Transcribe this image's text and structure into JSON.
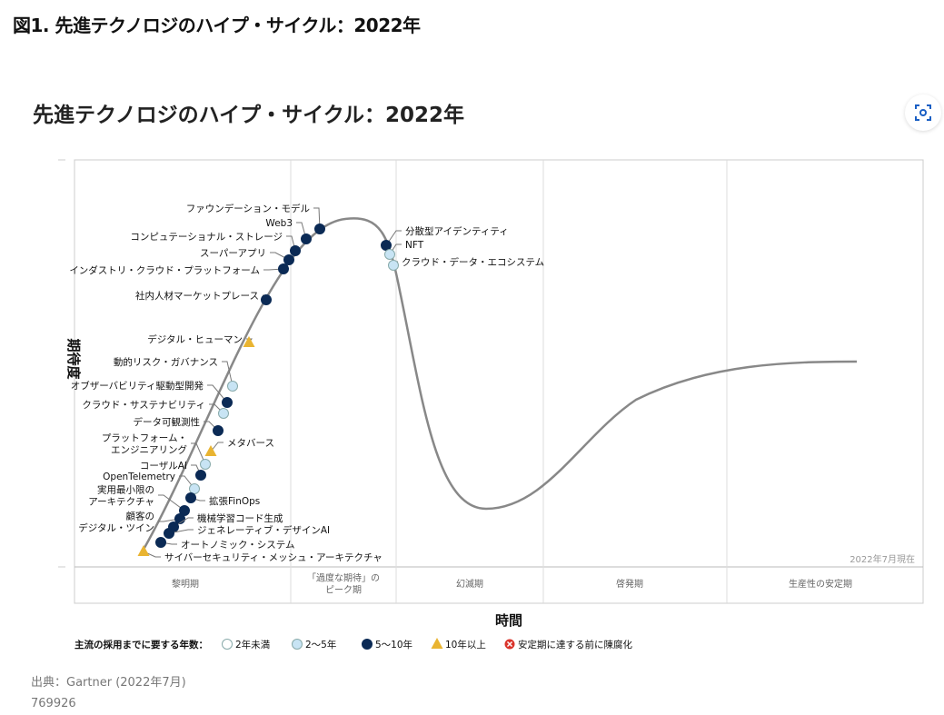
{
  "page_title": "図1. 先進テクノロジのハイプ・サイクル：2022年",
  "source": "出典：Gartner (2022年7月)",
  "figure_id": "769926",
  "lens_button_icon": "visual-search-icon",
  "chart_data": {
    "type": "hype-cycle",
    "title": "先進テクノロジのハイプ・サイクル：2022年",
    "ylabel": "期待度",
    "xlabel": "時間",
    "as_of": "2022年7月現在",
    "phases": [
      "黎明期",
      "「過度な期待」の\nピーク期",
      "幻滅期",
      "啓発期",
      "生産性の安定期"
    ],
    "legend_title": "主流の採用までに要する年数：",
    "legend": [
      {
        "key": "lt2",
        "label": "2年未満",
        "shape": "circle",
        "color": "#ffffff"
      },
      {
        "key": "2to5",
        "label": "2〜5年",
        "shape": "circle",
        "color": "#c8e4f4"
      },
      {
        "key": "5to10",
        "label": "5〜10年",
        "shape": "circle",
        "color": "#0b2a55"
      },
      {
        "key": "gt10",
        "label": "10年以上",
        "shape": "triangle",
        "color": "#e9b431"
      },
      {
        "key": "obsolete",
        "label": "安定期に達する前に陳腐化",
        "shape": "x-circle",
        "color": "#d9342b"
      }
    ],
    "items": [
      {
        "name": "ファウンデーション・モデル",
        "category": "5to10",
        "phase": "peak"
      },
      {
        "name": "Web3",
        "category": "5to10",
        "phase": "peak"
      },
      {
        "name": "コンピュテーショナル・ストレージ",
        "category": "5to10",
        "phase": "innovation"
      },
      {
        "name": "スーパーアプリ",
        "category": "5to10",
        "phase": "innovation"
      },
      {
        "name": "インダストリ・クラウド・プラットフォーム",
        "category": "5to10",
        "phase": "innovation"
      },
      {
        "name": "社内人材マーケットプレース",
        "category": "5to10",
        "phase": "innovation"
      },
      {
        "name": "デジタル・ヒューマン",
        "category": "gt10",
        "phase": "innovation"
      },
      {
        "name": "動的リスク・ガバナンス",
        "category": "2to5",
        "phase": "innovation"
      },
      {
        "name": "オブザーバビリティ駆動型開発",
        "category": "5to10",
        "phase": "innovation"
      },
      {
        "name": "クラウド・サステナビリティ",
        "category": "2to5",
        "phase": "innovation"
      },
      {
        "name": "データ可観測性",
        "category": "5to10",
        "phase": "innovation"
      },
      {
        "name": "メタバース",
        "category": "gt10",
        "phase": "innovation"
      },
      {
        "name": "プラットフォーム・\nエンジニアリング",
        "category": "2to5",
        "phase": "innovation"
      },
      {
        "name": "コーザルAI",
        "category": "5to10",
        "phase": "innovation"
      },
      {
        "name": "OpenTelemetry",
        "category": "2to5",
        "phase": "innovation"
      },
      {
        "name": "拡張FinOps",
        "category": "5to10",
        "phase": "innovation"
      },
      {
        "name": "実用最小限の\nアーキテクチャ",
        "category": "5to10",
        "phase": "innovation"
      },
      {
        "name": "顧客の\nデジタル・ツイン",
        "category": "5to10",
        "phase": "innovation"
      },
      {
        "name": "機械学習コード生成",
        "category": "5to10",
        "phase": "innovation"
      },
      {
        "name": "ジェネレーティブ・デザインAI",
        "category": "5to10",
        "phase": "innovation"
      },
      {
        "name": "オートノミック・システム",
        "category": "5to10",
        "phase": "innovation"
      },
      {
        "name": "サイバーセキュリティ・メッシュ・アーキテクチャ",
        "category": "gt10",
        "phase": "innovation"
      },
      {
        "name": "分散型アイデンティティ",
        "category": "5to10",
        "phase": "trough"
      },
      {
        "name": "NFT",
        "category": "2to5",
        "phase": "trough"
      },
      {
        "name": "クラウド・データ・エコシステム",
        "category": "2to5",
        "phase": "trough"
      }
    ]
  }
}
